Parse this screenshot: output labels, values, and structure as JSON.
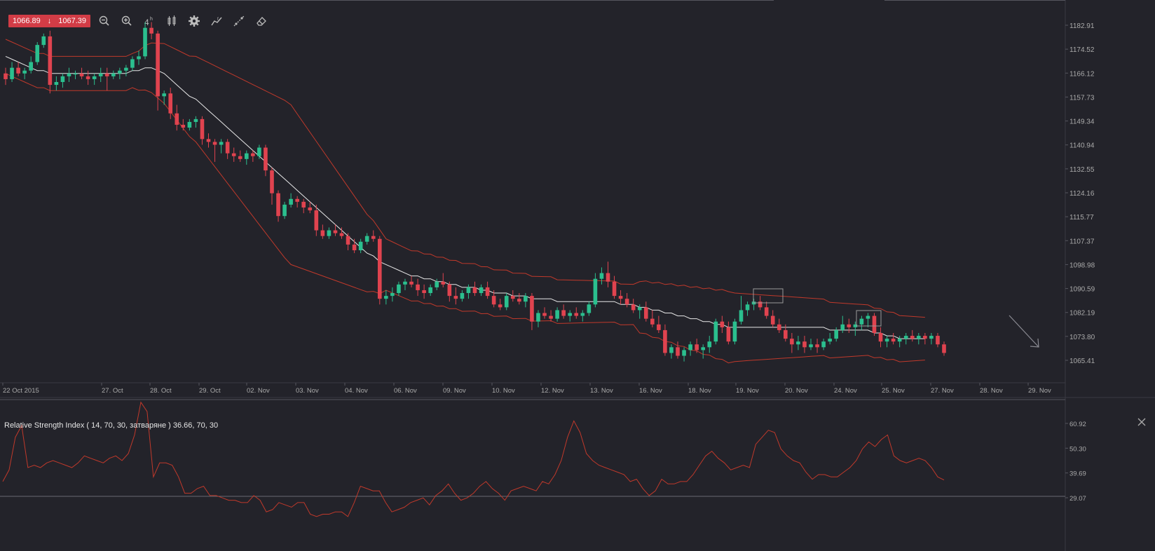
{
  "quote": {
    "bid": "1066.89",
    "ask": "1067.39",
    "direction_icon": "arrow-down-icon"
  },
  "toolbar": {
    "icons": [
      "zoom-out-icon",
      "zoom-in-icon",
      "timeframe-4h-icon",
      "candle-type-icon",
      "settings-gear-icon",
      "indicator-icon",
      "drawing-tools-icon",
      "eraser-icon"
    ],
    "timeframe": "4h"
  },
  "price_axis": {
    "labels": [
      "1182.91",
      "1174.52",
      "1166.12",
      "1157.73",
      "1149.34",
      "1140.94",
      "1132.55",
      "1124.16",
      "1115.77",
      "1107.37",
      "1098.98",
      "1090.59",
      "1082.19",
      "1073.80",
      "1065.41"
    ]
  },
  "date_axis": {
    "labels": [
      "22 Oct 2015",
      "27. Oct",
      "28. Oct",
      "29. Oct",
      "02. Nov",
      "03. Nov",
      "04. Nov",
      "06. Nov",
      "09. Nov",
      "10. Nov",
      "12. Nov",
      "13. Nov",
      "16. Nov",
      "18. Nov",
      "19. Nov",
      "20. Nov",
      "24. Nov",
      "25. Nov",
      "27. Nov",
      "28. Nov",
      "29. Nov"
    ]
  },
  "rsi": {
    "label": "Relative Strength Index ( 14, 70, 30, затваряне ) 36.66, 70, 30",
    "axis_labels": [
      "60.92",
      "50.30",
      "39.69",
      "29.07"
    ],
    "period": 14,
    "overbought": 70,
    "oversold": 30,
    "current": 36.66
  },
  "colors": {
    "up": "#2bbf8e",
    "down": "#e0434f",
    "band": "#c0392b",
    "ma": "#e8e8e8",
    "rsi": "#c0392b",
    "bg": "#23232a"
  },
  "chart_data": {
    "type": "candlestick",
    "ylim": [
      1060,
      1187
    ],
    "date_ticks": [
      "22 Oct 2015",
      "27. Oct",
      "28. Oct",
      "29. Oct",
      "02. Nov",
      "03. Nov",
      "04. Nov",
      "06. Nov",
      "09. Nov",
      "10. Nov",
      "12. Nov",
      "13. Nov",
      "16. Nov",
      "18. Nov",
      "19. Nov",
      "20. Nov",
      "24. Nov",
      "25. Nov",
      "27. Nov",
      "28. Nov",
      "29. Nov"
    ],
    "ohlc": [
      [
        1166,
        1168,
        1162,
        1164
      ],
      [
        1164,
        1170,
        1163,
        1168
      ],
      [
        1168,
        1170,
        1165,
        1166
      ],
      [
        1166,
        1168,
        1164,
        1167
      ],
      [
        1167,
        1172,
        1166,
        1170
      ],
      [
        1170,
        1177,
        1169,
        1176
      ],
      [
        1176,
        1180,
        1175,
        1179
      ],
      [
        1179,
        1181,
        1159,
        1162
      ],
      [
        1162,
        1165,
        1160,
        1163
      ],
      [
        1163,
        1166,
        1161,
        1165
      ],
      [
        1165,
        1168,
        1163,
        1166
      ],
      [
        1166,
        1167,
        1164,
        1166
      ],
      [
        1166,
        1168,
        1164,
        1165
      ],
      [
        1165,
        1167,
        1162,
        1164
      ],
      [
        1164,
        1166,
        1162,
        1165
      ],
      [
        1165,
        1168,
        1163,
        1166
      ],
      [
        1166,
        1168,
        1160,
        1165
      ],
      [
        1165,
        1167,
        1164,
        1166
      ],
      [
        1166,
        1168,
        1164,
        1167
      ],
      [
        1167,
        1169,
        1165,
        1168
      ],
      [
        1168,
        1172,
        1167,
        1171
      ],
      [
        1171,
        1174,
        1169,
        1172
      ],
      [
        1172,
        1184,
        1171,
        1182
      ],
      [
        1182,
        1184,
        1178,
        1180
      ],
      [
        1180,
        1181,
        1153,
        1158
      ],
      [
        1158,
        1160,
        1155,
        1159
      ],
      [
        1159,
        1161,
        1150,
        1152
      ],
      [
        1152,
        1155,
        1146,
        1148
      ],
      [
        1148,
        1150,
        1146,
        1147
      ],
      [
        1147,
        1150,
        1146,
        1149
      ],
      [
        1149,
        1151,
        1147,
        1150
      ],
      [
        1150,
        1151,
        1141,
        1143
      ],
      [
        1143,
        1145,
        1140,
        1142
      ],
      [
        1142,
        1143,
        1135,
        1141
      ],
      [
        1141,
        1143,
        1138,
        1142
      ],
      [
        1142,
        1143,
        1136,
        1138
      ],
      [
        1138,
        1140,
        1135,
        1137
      ],
      [
        1137,
        1139,
        1135,
        1136
      ],
      [
        1136,
        1139,
        1134,
        1138
      ],
      [
        1138,
        1139,
        1135,
        1137
      ],
      [
        1137,
        1141,
        1136,
        1140
      ],
      [
        1140,
        1141,
        1130,
        1132
      ],
      [
        1132,
        1133,
        1120,
        1124
      ],
      [
        1124,
        1125,
        1114,
        1116
      ],
      [
        1116,
        1121,
        1115,
        1120
      ],
      [
        1120,
        1124,
        1119,
        1122
      ],
      [
        1122,
        1123,
        1119,
        1121
      ],
      [
        1121,
        1122,
        1117,
        1119
      ],
      [
        1119,
        1121,
        1117,
        1118
      ],
      [
        1118,
        1120,
        1109,
        1111
      ],
      [
        1111,
        1113,
        1108,
        1109
      ],
      [
        1109,
        1112,
        1108,
        1111
      ],
      [
        1111,
        1113,
        1109,
        1110
      ],
      [
        1110,
        1112,
        1108,
        1109
      ],
      [
        1109,
        1110,
        1104,
        1106
      ],
      [
        1106,
        1108,
        1103,
        1104
      ],
      [
        1104,
        1108,
        1103,
        1107
      ],
      [
        1107,
        1110,
        1106,
        1109
      ],
      [
        1109,
        1111,
        1107,
        1108
      ],
      [
        1108,
        1109,
        1085,
        1087
      ],
      [
        1087,
        1090,
        1085,
        1088
      ],
      [
        1088,
        1091,
        1086,
        1089
      ],
      [
        1089,
        1093,
        1088,
        1092
      ],
      [
        1092,
        1094,
        1090,
        1093
      ],
      [
        1093,
        1095,
        1091,
        1092
      ],
      [
        1092,
        1094,
        1088,
        1090
      ],
      [
        1090,
        1092,
        1087,
        1089
      ],
      [
        1089,
        1092,
        1088,
        1091
      ],
      [
        1091,
        1094,
        1090,
        1093
      ],
      [
        1093,
        1096,
        1091,
        1092
      ],
      [
        1092,
        1093,
        1086,
        1088
      ],
      [
        1088,
        1091,
        1085,
        1087
      ],
      [
        1087,
        1090,
        1086,
        1089
      ],
      [
        1089,
        1092,
        1087,
        1091
      ],
      [
        1091,
        1093,
        1088,
        1089
      ],
      [
        1089,
        1092,
        1088,
        1091
      ],
      [
        1091,
        1093,
        1087,
        1088
      ],
      [
        1088,
        1090,
        1084,
        1085
      ],
      [
        1085,
        1087,
        1083,
        1084
      ],
      [
        1084,
        1089,
        1083,
        1088
      ],
      [
        1088,
        1090,
        1086,
        1087
      ],
      [
        1087,
        1089,
        1085,
        1086
      ],
      [
        1086,
        1089,
        1084,
        1088
      ],
      [
        1088,
        1089,
        1076,
        1079
      ],
      [
        1079,
        1083,
        1077,
        1082
      ],
      [
        1082,
        1084,
        1080,
        1081
      ],
      [
        1081,
        1083,
        1079,
        1080
      ],
      [
        1080,
        1084,
        1079,
        1083
      ],
      [
        1083,
        1085,
        1080,
        1081
      ],
      [
        1081,
        1083,
        1079,
        1082
      ],
      [
        1082,
        1084,
        1080,
        1081
      ],
      [
        1081,
        1083,
        1079,
        1082
      ],
      [
        1082,
        1086,
        1081,
        1085
      ],
      [
        1085,
        1096,
        1084,
        1094
      ],
      [
        1094,
        1098,
        1092,
        1096
      ],
      [
        1096,
        1100,
        1091,
        1093
      ],
      [
        1093,
        1095,
        1087,
        1088
      ],
      [
        1088,
        1090,
        1085,
        1087
      ],
      [
        1087,
        1089,
        1084,
        1085
      ],
      [
        1085,
        1087,
        1082,
        1083
      ],
      [
        1083,
        1085,
        1080,
        1084
      ],
      [
        1084,
        1086,
        1079,
        1080
      ],
      [
        1080,
        1083,
        1077,
        1078
      ],
      [
        1078,
        1081,
        1075,
        1076
      ],
      [
        1076,
        1078,
        1067,
        1068
      ],
      [
        1068,
        1071,
        1066,
        1070
      ],
      [
        1070,
        1072,
        1066,
        1067
      ],
      [
        1067,
        1070,
        1065,
        1069
      ],
      [
        1069,
        1072,
        1067,
        1071
      ],
      [
        1071,
        1073,
        1068,
        1069
      ],
      [
        1069,
        1071,
        1066,
        1070
      ],
      [
        1070,
        1074,
        1068,
        1072
      ],
      [
        1072,
        1080,
        1071,
        1079
      ],
      [
        1079,
        1081,
        1075,
        1077
      ],
      [
        1077,
        1079,
        1071,
        1072
      ],
      [
        1072,
        1080,
        1071,
        1079
      ],
      [
        1079,
        1088,
        1078,
        1083
      ],
      [
        1083,
        1086,
        1081,
        1085
      ],
      [
        1085,
        1087,
        1083,
        1086
      ],
      [
        1086,
        1088,
        1083,
        1084
      ],
      [
        1084,
        1086,
        1080,
        1081
      ],
      [
        1081,
        1083,
        1077,
        1078
      ],
      [
        1078,
        1080,
        1075,
        1076
      ],
      [
        1076,
        1078,
        1072,
        1073
      ],
      [
        1073,
        1075,
        1068,
        1071
      ],
      [
        1071,
        1074,
        1069,
        1072
      ],
      [
        1072,
        1074,
        1068,
        1070
      ],
      [
        1070,
        1073,
        1069,
        1071
      ],
      [
        1071,
        1073,
        1068,
        1070
      ],
      [
        1070,
        1073,
        1069,
        1072
      ],
      [
        1072,
        1075,
        1071,
        1073
      ],
      [
        1073,
        1077,
        1072,
        1076
      ],
      [
        1076,
        1081,
        1075,
        1078
      ],
      [
        1078,
        1080,
        1075,
        1077
      ],
      [
        1077,
        1079,
        1074,
        1078
      ],
      [
        1078,
        1081,
        1076,
        1080
      ],
      [
        1080,
        1082,
        1077,
        1081
      ],
      [
        1081,
        1082,
        1074,
        1075
      ],
      [
        1075,
        1077,
        1070,
        1072
      ],
      [
        1072,
        1074,
        1070,
        1073
      ],
      [
        1073,
        1075,
        1071,
        1072
      ],
      [
        1072,
        1074,
        1070,
        1073
      ],
      [
        1073,
        1075,
        1071,
        1074
      ],
      [
        1074,
        1076,
        1072,
        1073
      ],
      [
        1073,
        1075,
        1071,
        1074
      ],
      [
        1074,
        1075,
        1071,
        1073
      ],
      [
        1073,
        1075,
        1071,
        1074
      ],
      [
        1074,
        1075,
        1070,
        1071
      ],
      [
        1071,
        1072,
        1067,
        1068
      ]
    ],
    "ma": [
      1172,
      1171,
      1170,
      1169,
      1168,
      1167,
      1167,
      1166,
      1166,
      1166,
      1166,
      1166,
      1166,
      1166,
      1166,
      1166,
      1166,
      1166,
      1166,
      1166,
      1167,
      1167,
      1168,
      1168,
      1167,
      1166,
      1164,
      1162,
      1160,
      1158,
      1157,
      1155,
      1153,
      1151,
      1149,
      1147,
      1145,
      1143,
      1141,
      1139,
      1137,
      1135,
      1133,
      1131,
      1129,
      1127,
      1125,
      1123,
      1121,
      1119,
      1117,
      1115,
      1113,
      1111,
      1109,
      1107,
      1105,
      1103,
      1102,
      1100,
      1099,
      1098,
      1097,
      1096,
      1095,
      1095,
      1094,
      1094,
      1093,
      1093,
      1092,
      1092,
      1091,
      1091,
      1091,
      1090,
      1090,
      1089,
      1089,
      1089,
      1088,
      1088,
      1088,
      1087,
      1087,
      1087,
      1087,
      1086,
      1086,
      1086,
      1086,
      1086,
      1086,
      1086,
      1086,
      1086,
      1086,
      1085,
      1085,
      1085,
      1084,
      1084,
      1083,
      1083,
      1082,
      1082,
      1081,
      1081,
      1080,
      1080,
      1079,
      1079,
      1078,
      1078,
      1077,
      1077,
      1077,
      1077,
      1077,
      1077,
      1077,
      1077,
      1077,
      1077,
      1077,
      1077,
      1077,
      1077,
      1077,
      1077,
      1076,
      1076,
      1076,
      1076,
      1076,
      1076,
      1076,
      1075,
      1075,
      1074,
      1074,
      1073,
      1073,
      1073,
      1073,
      1073
    ],
    "rsi_values": [
      36,
      41,
      55,
      60,
      42,
      43,
      42,
      44,
      45,
      44,
      43,
      42,
      44,
      47,
      46,
      45,
      44,
      46,
      47,
      45,
      48,
      56,
      70,
      66,
      38,
      44,
      44,
      43,
      38,
      31,
      31,
      33,
      34,
      30,
      30,
      29,
      28,
      28,
      27,
      27,
      30,
      28,
      23,
      24,
      27,
      26,
      25,
      27,
      27,
      22,
      21,
      22,
      22,
      23,
      23,
      21,
      27,
      34,
      33,
      32,
      32,
      27,
      23,
      24,
      25,
      27,
      28,
      29,
      26,
      30,
      32,
      35,
      31,
      28,
      29,
      31,
      34,
      36,
      33,
      31,
      28,
      32,
      33,
      34,
      33,
      32,
      36,
      35,
      39,
      45,
      55,
      62,
      57,
      48,
      45,
      43,
      42,
      41,
      40,
      39,
      36,
      37,
      33,
      30,
      32,
      37,
      35,
      35,
      36,
      36,
      39,
      43,
      47,
      49,
      46,
      44,
      41,
      42,
      43,
      42,
      52,
      55,
      58,
      57,
      50,
      47,
      45,
      44,
      40,
      37,
      39,
      39,
      38,
      38,
      40,
      42,
      45,
      50,
      53,
      51,
      54,
      56,
      47,
      45,
      44,
      45,
      46,
      45,
      42,
      38,
      36.66
    ]
  }
}
